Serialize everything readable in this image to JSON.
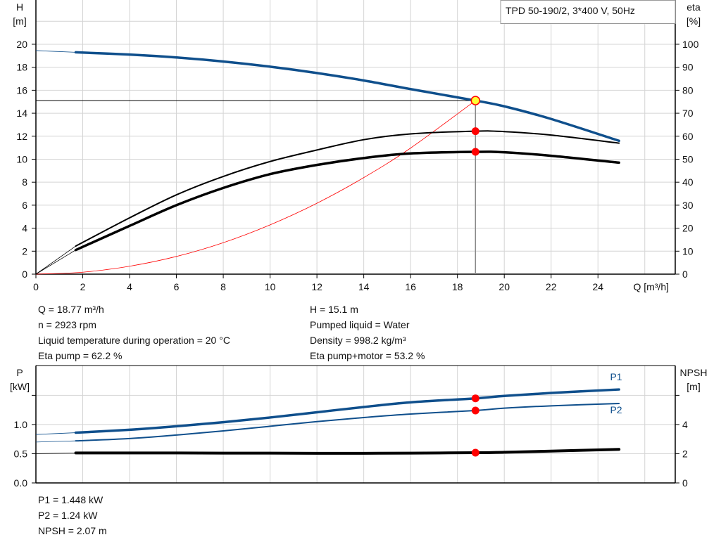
{
  "title": "TPD 50-190/2, 3*400 V, 50Hz",
  "colors": {
    "blue": "#0f4f8c",
    "black": "#000000",
    "red": "#ff0000",
    "operating_point_fill": "#ffff33",
    "grid": "#d4d4d4"
  },
  "info_top": {
    "left": [
      "Q = 18.77 m³/h",
      "n = 2923 rpm",
      "Liquid temperature during operation = 20 °C",
      "Eta pump = 62.2 %"
    ],
    "right": [
      "H = 15.1 m",
      "Pumped liquid = Water",
      "Density = 998.2 kg/m³",
      "Eta pump+motor = 53.2 %"
    ]
  },
  "info_bottom": [
    "P1 = 1.448 kW",
    "P2 = 1.24 kW",
    "NPSH = 2.07 m"
  ],
  "chart_data": [
    {
      "type": "line",
      "title": "TPD 50-190/2, 3*400 V, 50Hz",
      "xlabel": "Q [m³/h]",
      "ylabel": [
        "H",
        "[m]"
      ],
      "y2label": [
        "eta",
        "[%]"
      ],
      "xlim": [
        0,
        27.3
      ],
      "ylim": [
        0,
        23.85
      ],
      "y2lim": [
        0,
        119.25
      ],
      "xticks": [
        0,
        2,
        4,
        6,
        8,
        10,
        12,
        14,
        16,
        18,
        20,
        22,
        24
      ],
      "yticks": [
        0,
        2,
        4,
        6,
        8,
        10,
        12,
        14,
        16,
        18,
        20
      ],
      "y2ticks": [
        0,
        10,
        20,
        30,
        40,
        50,
        60,
        70,
        80,
        90,
        100
      ],
      "grid": true,
      "legend": "top-right",
      "series": [
        {
          "key": "H",
          "axis": "left",
          "color": "#0f4f8c",
          "x": [
            1.7,
            4,
            6,
            8,
            10,
            12,
            14,
            16,
            18.77,
            20,
            22,
            24.9
          ],
          "y": [
            19.3,
            19.1,
            18.85,
            18.5,
            18.05,
            17.5,
            16.85,
            16.1,
            15.1,
            14.6,
            13.5,
            11.6
          ],
          "extension": [
            [
              0,
              19.45
            ],
            [
              1.7,
              19.3
            ]
          ]
        },
        {
          "key": "eta_pump",
          "axis": "right",
          "color": "#000000",
          "x": [
            1.7,
            4,
            6,
            8,
            10,
            12,
            14,
            16,
            18.77,
            20,
            22,
            24.9
          ],
          "y": [
            12.2,
            24.5,
            34.5,
            42.5,
            49,
            54,
            58.5,
            61,
            62.2,
            62,
            60.5,
            57
          ],
          "extension": [
            [
              0,
              0
            ],
            [
              1.7,
              12.2
            ]
          ]
        },
        {
          "key": "eta_pump_motor",
          "axis": "right",
          "color": "#000000",
          "x": [
            1.7,
            4,
            6,
            8,
            10,
            12,
            14,
            16,
            18.77,
            20,
            22,
            24.9
          ],
          "y": [
            10.5,
            21,
            30,
            37.5,
            43.5,
            47.5,
            50.5,
            52.5,
            53.2,
            53,
            51.5,
            48.5
          ],
          "extension": [
            [
              0,
              0
            ],
            [
              1.7,
              10.5
            ]
          ]
        }
      ],
      "system_curve": {
        "color": "#ff0000",
        "x": [
          0,
          2,
          4,
          6,
          8,
          10,
          12,
          14,
          16,
          18.77
        ],
        "y": [
          0,
          0.17,
          0.69,
          1.54,
          2.74,
          4.29,
          6.17,
          8.4,
          10.97,
          15.1
        ]
      },
      "operating_point": {
        "Q": 18.77,
        "H": 15.1,
        "eta_pump": 62.2,
        "eta_pump_motor": 53.2
      }
    },
    {
      "type": "line",
      "ylabel": [
        "P",
        "[kW]"
      ],
      "y2label": [
        "NPSH",
        "[m]"
      ],
      "xlim": [
        0,
        27.3
      ],
      "ylim": [
        0,
        2.01
      ],
      "y2lim": [
        0,
        8.04
      ],
      "yticks": [
        0,
        0.5,
        1.0,
        1.5
      ],
      "yticklabels": [
        "0.0",
        "0.5",
        "1.0",
        ""
      ],
      "y2ticks": [
        0,
        2,
        4,
        6
      ],
      "y2ticklabels": [
        "0",
        "2",
        "4",
        ""
      ],
      "grid": true,
      "series": [
        {
          "key": "P1",
          "name": "P1",
          "axis": "left",
          "color": "#0f4f8c",
          "x": [
            1.7,
            4,
            6,
            8,
            10,
            12,
            14,
            16,
            18.77,
            20,
            22,
            24.9
          ],
          "y": [
            0.86,
            0.91,
            0.97,
            1.04,
            1.12,
            1.21,
            1.3,
            1.38,
            1.448,
            1.49,
            1.54,
            1.6
          ],
          "extension": [
            [
              0,
              0.83
            ],
            [
              1.7,
              0.86
            ]
          ]
        },
        {
          "key": "P2",
          "name": "P2",
          "axis": "left",
          "color": "#0f4f8c",
          "x": [
            1.7,
            4,
            6,
            8,
            10,
            12,
            14,
            16,
            18.77,
            20,
            22,
            24.9
          ],
          "y": [
            0.72,
            0.76,
            0.82,
            0.89,
            0.97,
            1.05,
            1.12,
            1.18,
            1.24,
            1.28,
            1.32,
            1.36
          ],
          "extension": [
            [
              0,
              0.7
            ],
            [
              1.7,
              0.72
            ]
          ]
        },
        {
          "key": "NPSH",
          "axis": "right",
          "color": "#000000",
          "x": [
            1.7,
            4,
            6,
            8,
            10,
            12,
            14,
            16,
            18.77,
            20,
            22,
            24.9
          ],
          "y": [
            2.05,
            2.05,
            2.05,
            2.04,
            2.04,
            2.03,
            2.03,
            2.04,
            2.07,
            2.1,
            2.18,
            2.3
          ],
          "extension": [
            [
              0,
              2.0
            ],
            [
              1.7,
              2.05
            ]
          ]
        }
      ],
      "operating_point": {
        "Q": 18.77,
        "P1": 1.448,
        "P2": 1.24,
        "NPSH": 2.07
      }
    }
  ]
}
